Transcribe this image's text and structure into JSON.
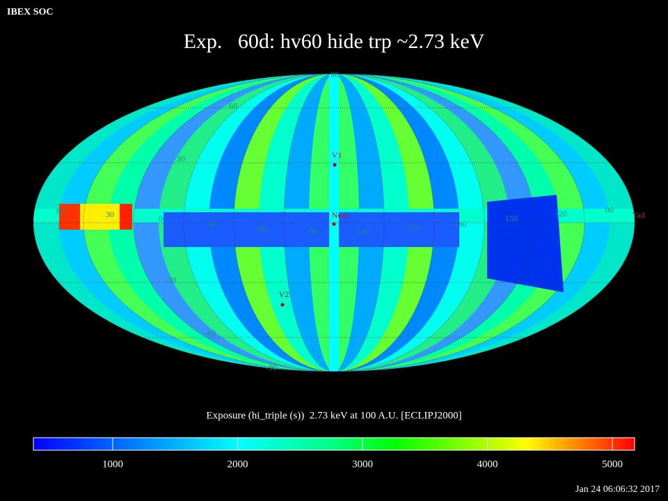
{
  "header": {
    "label": "IBEX SOC",
    "title": "Exp.   60d: hv60 hide trp ~2.73 keV",
    "timestamp": "Jan 24 06:06:32 2017"
  },
  "map": {
    "latitude_labels": [
      "90",
      "60",
      "30",
      "-30",
      "-60",
      "-90"
    ],
    "longitude_labels": [
      "60",
      "30",
      "0",
      "-30",
      "-60",
      "-90",
      "-120",
      "-150",
      "180",
      "150",
      "120",
      "90"
    ],
    "markers": [
      "V1",
      "Nose",
      "V2",
      "Tail"
    ]
  },
  "colorbar": {
    "label": "Exposure (hi_triple (s))  2.73 keV at 100 A.U. [ECLIPJ2000]",
    "lim": [
      365,
      5178
    ],
    "ticks": [
      1000,
      2000,
      3000,
      4000,
      5000
    ]
  }
}
